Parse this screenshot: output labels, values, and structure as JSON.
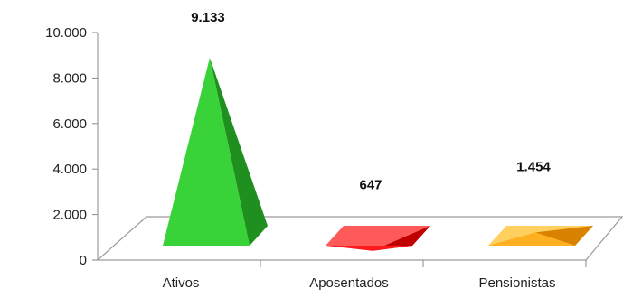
{
  "chart_data": {
    "type": "bar",
    "bar_shape": "pyramid-3d",
    "categories": [
      "Ativos",
      "Aposentados",
      "Pensionistas"
    ],
    "values": [
      9133,
      647,
      1454
    ],
    "data_labels": [
      "9.133",
      "647",
      "1.454"
    ],
    "ylim": [
      0,
      10000
    ],
    "yticks": [
      0,
      2000,
      4000,
      6000,
      8000,
      10000
    ],
    "ytick_labels": [
      "0",
      "2.000",
      "4.000",
      "6.000",
      "8.000",
      "10.000"
    ],
    "title": "",
    "xlabel": "",
    "ylabel": "",
    "grid": false,
    "legend": "none",
    "colors": {
      "Ativos": {
        "front": "#39d339",
        "side": "#1f8f1f",
        "top": "#7ff07f"
      },
      "Aposentados": {
        "front": "#ff1a1a",
        "side": "#c00000",
        "top": "#ff5a5a"
      },
      "Pensionistas": {
        "front": "#ffb020",
        "side": "#d98200",
        "top": "#ffd060"
      }
    }
  }
}
